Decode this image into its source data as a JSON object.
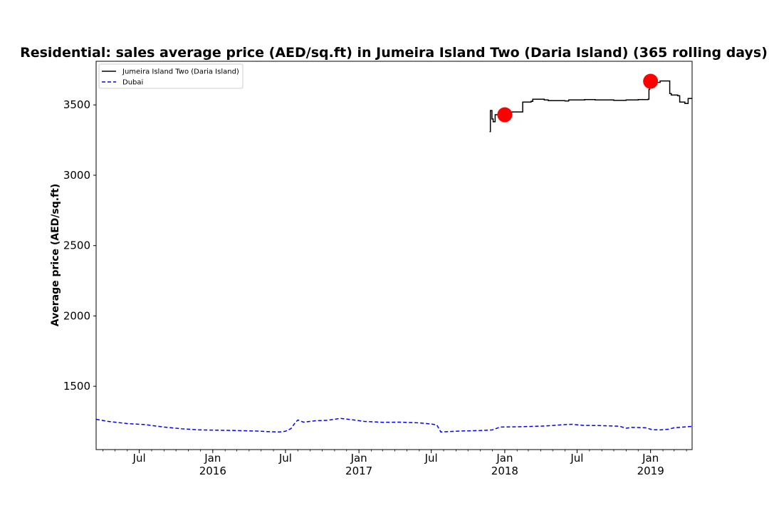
{
  "chart_data": {
    "type": "line",
    "title": "Residential: sales average price (AED/sq.ft) in Jumeira Island Two (Daria Island) (365 rolling days)",
    "ylabel": "Average price (AED/sq.ft)",
    "xlabel": "",
    "xlim": [
      "2015-03-15",
      "2019-04-15"
    ],
    "ylim": [
      1050,
      3810
    ],
    "yticks": [
      1500,
      2000,
      2500,
      3000,
      3500
    ],
    "xticks": [
      {
        "date": "2015-07-01",
        "label": "Jul",
        "year": ""
      },
      {
        "date": "2016-01-01",
        "label": "Jan",
        "year": "2016"
      },
      {
        "date": "2016-07-01",
        "label": "Jul",
        "year": ""
      },
      {
        "date": "2017-01-01",
        "label": "Jan",
        "year": "2017"
      },
      {
        "date": "2017-07-01",
        "label": "Jul",
        "year": ""
      },
      {
        "date": "2018-01-01",
        "label": "Jan",
        "year": "2018"
      },
      {
        "date": "2018-07-01",
        "label": "Jul",
        "year": ""
      },
      {
        "date": "2019-01-01",
        "label": "Jan",
        "year": "2019"
      }
    ],
    "grid": false,
    "legend_position": "top-left",
    "series": [
      {
        "name": "Jumeira Island Two (Daria Island)",
        "color": "#000000",
        "style": "solid",
        "step": true,
        "points": [
          [
            "2017-11-24",
            3310
          ],
          [
            "2017-11-26",
            3460
          ],
          [
            "2017-11-30",
            3400
          ],
          [
            "2017-12-03",
            3380
          ],
          [
            "2017-12-08",
            3430
          ],
          [
            "2018-01-05",
            3440
          ],
          [
            "2018-01-10",
            3450
          ],
          [
            "2018-02-12",
            3450
          ],
          [
            "2018-02-15",
            3520
          ],
          [
            "2018-03-08",
            3525
          ],
          [
            "2018-03-12",
            3540
          ],
          [
            "2018-04-10",
            3535
          ],
          [
            "2018-04-20",
            3530
          ],
          [
            "2018-06-01",
            3528
          ],
          [
            "2018-06-10",
            3535
          ],
          [
            "2018-07-20",
            3538
          ],
          [
            "2018-08-15",
            3535
          ],
          [
            "2018-10-01",
            3532
          ],
          [
            "2018-11-01",
            3535
          ],
          [
            "2018-12-01",
            3538
          ],
          [
            "2018-12-26",
            3540
          ],
          [
            "2018-12-28",
            3610
          ],
          [
            "2018-12-30",
            3650
          ],
          [
            "2019-01-06",
            3665
          ],
          [
            "2019-01-15",
            3660
          ],
          [
            "2019-01-25",
            3670
          ],
          [
            "2019-02-15",
            3670
          ],
          [
            "2019-02-18",
            3580
          ],
          [
            "2019-02-22",
            3570
          ],
          [
            "2019-03-10",
            3565
          ],
          [
            "2019-03-15",
            3520
          ],
          [
            "2019-03-28",
            3510
          ],
          [
            "2019-04-05",
            3545
          ],
          [
            "2019-04-15",
            3545
          ]
        ]
      },
      {
        "name": "Dubai",
        "color": "#0000ff",
        "style": "dashed",
        "step": false,
        "points": [
          [
            "2015-03-15",
            1265
          ],
          [
            "2015-04-15",
            1250
          ],
          [
            "2015-06-01",
            1235
          ],
          [
            "2015-07-15",
            1228
          ],
          [
            "2015-09-01",
            1210
          ],
          [
            "2015-10-15",
            1198
          ],
          [
            "2015-12-01",
            1190
          ],
          [
            "2016-01-15",
            1188
          ],
          [
            "2016-03-01",
            1185
          ],
          [
            "2016-04-15",
            1182
          ],
          [
            "2016-05-15",
            1178
          ],
          [
            "2016-06-15",
            1175
          ],
          [
            "2016-07-01",
            1180
          ],
          [
            "2016-07-15",
            1200
          ],
          [
            "2016-07-25",
            1240
          ],
          [
            "2016-08-01",
            1260
          ],
          [
            "2016-08-15",
            1245
          ],
          [
            "2016-09-15",
            1255
          ],
          [
            "2016-10-15",
            1258
          ],
          [
            "2016-11-15",
            1272
          ],
          [
            "2016-12-15",
            1262
          ],
          [
            "2017-01-15",
            1250
          ],
          [
            "2017-03-01",
            1244
          ],
          [
            "2017-04-15",
            1245
          ],
          [
            "2017-06-01",
            1240
          ],
          [
            "2017-07-01",
            1232
          ],
          [
            "2017-07-15",
            1225
          ],
          [
            "2017-07-25",
            1175
          ],
          [
            "2017-08-15",
            1178
          ],
          [
            "2017-09-15",
            1182
          ],
          [
            "2017-11-01",
            1185
          ],
          [
            "2017-12-01",
            1190
          ],
          [
            "2017-12-20",
            1210
          ],
          [
            "2018-02-01",
            1212
          ],
          [
            "2018-03-15",
            1215
          ],
          [
            "2018-04-15",
            1218
          ],
          [
            "2018-06-01",
            1228
          ],
          [
            "2018-06-20",
            1230
          ],
          [
            "2018-07-15",
            1222
          ],
          [
            "2018-09-01",
            1220
          ],
          [
            "2018-10-15",
            1216
          ],
          [
            "2018-11-01",
            1202
          ],
          [
            "2018-11-15",
            1208
          ],
          [
            "2018-12-20",
            1205
          ],
          [
            "2019-01-05",
            1192
          ],
          [
            "2019-01-25",
            1190
          ],
          [
            "2019-02-15",
            1195
          ],
          [
            "2019-03-01",
            1205
          ],
          [
            "2019-04-15",
            1215
          ]
        ]
      }
    ],
    "markers": [
      {
        "date": "2018-01-01",
        "value": 3430,
        "color": "#ff0000"
      },
      {
        "date": "2019-01-01",
        "value": 3668,
        "color": "#ff0000"
      }
    ]
  }
}
